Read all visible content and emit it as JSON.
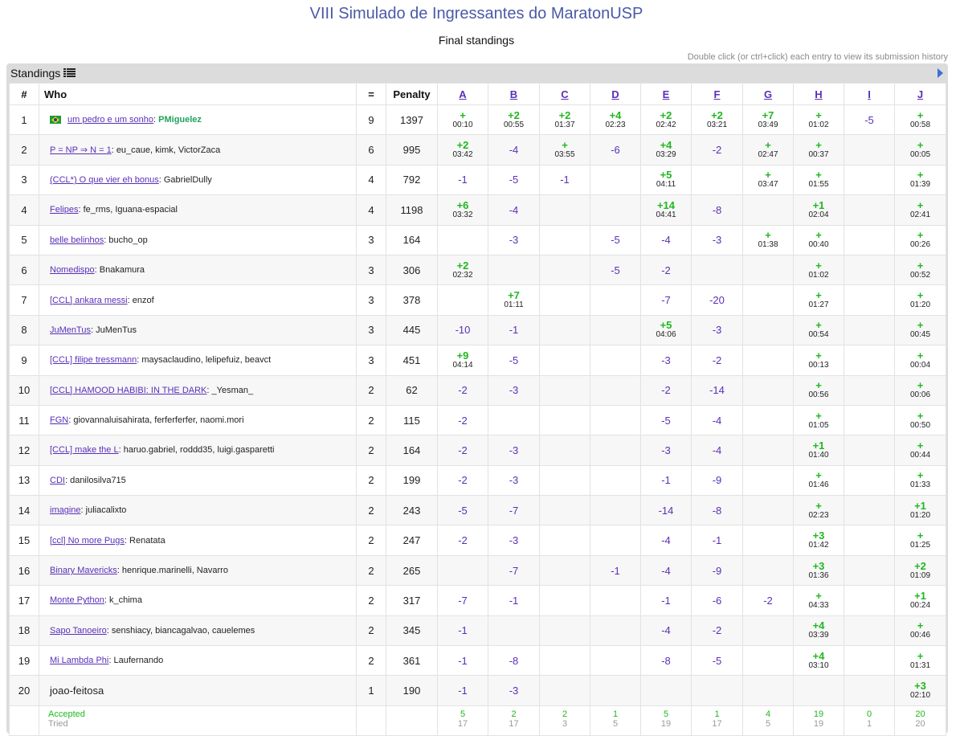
{
  "header": {
    "title": "VIII Simulado de Ingressantes do MaratonUSP",
    "subtitle": "Final standings",
    "hint": "Double click (or ctrl+click) each entry to view its submission history"
  },
  "panel": {
    "label": "Standings"
  },
  "columns": {
    "rank": "#",
    "who": "Who",
    "solved": "=",
    "penalty": "Penalty",
    "problems": [
      "A",
      "B",
      "C",
      "D",
      "E",
      "F",
      "G",
      "H",
      "I",
      "J"
    ]
  },
  "rows": [
    {
      "rank": "1",
      "flag": true,
      "team": "um pedro e um sonho",
      "members": "PMiguelez",
      "solved": "9",
      "penalty": "1397",
      "cells": [
        [
          "+",
          "00:10"
        ],
        [
          "+2",
          "00:55"
        ],
        [
          "+2",
          "01:37"
        ],
        [
          "+4",
          "02:23"
        ],
        [
          "+2",
          "02:42"
        ],
        [
          "+2",
          "03:21"
        ],
        [
          "+7",
          "03:49"
        ],
        [
          "+",
          "01:02"
        ],
        [
          "-5"
        ],
        [
          "+",
          "00:58"
        ]
      ]
    },
    {
      "rank": "2",
      "team": "P = NP ⇒ N = 1",
      "members": "eu_caue, kimk, VictorZaca",
      "solved": "6",
      "penalty": "995",
      "cells": [
        [
          "+2",
          "03:42"
        ],
        [
          "-4"
        ],
        [
          "+",
          "03:55"
        ],
        [
          "-6"
        ],
        [
          "+4",
          "03:29"
        ],
        [
          "-2"
        ],
        [
          "+",
          "02:47"
        ],
        [
          "+",
          "00:37"
        ],
        [],
        [
          "+",
          "00:05"
        ]
      ]
    },
    {
      "rank": "3",
      "team": "(CCL*) O que vier eh bonus",
      "members": "GabrielDully",
      "solved": "4",
      "penalty": "792",
      "cells": [
        [
          "-1"
        ],
        [
          "-5"
        ],
        [
          "-1"
        ],
        [],
        [
          "+5",
          "04:11"
        ],
        [],
        [
          "+",
          "03:47"
        ],
        [
          "+",
          "01:55"
        ],
        [],
        [
          "+",
          "01:39"
        ]
      ]
    },
    {
      "rank": "4",
      "team": "Felipes",
      "members": "fe_rms, Iguana-espacial",
      "solved": "4",
      "penalty": "1198",
      "cells": [
        [
          "+6",
          "03:32"
        ],
        [
          "-4"
        ],
        [],
        [],
        [
          "+14",
          "04:41"
        ],
        [
          "-8"
        ],
        [],
        [
          "+1",
          "02:04"
        ],
        [],
        [
          "+",
          "02:41"
        ]
      ]
    },
    {
      "rank": "5",
      "team": "belle belinhos",
      "members": "bucho_op",
      "solved": "3",
      "penalty": "164",
      "cells": [
        [],
        [
          "-3"
        ],
        [],
        [
          "-5"
        ],
        [
          "-4"
        ],
        [
          "-3"
        ],
        [
          "+",
          "01:38"
        ],
        [
          "+",
          "00:40"
        ],
        [],
        [
          "+",
          "00:26"
        ]
      ]
    },
    {
      "rank": "6",
      "team": "Nomedispo",
      "members": "Bnakamura",
      "solved": "3",
      "penalty": "306",
      "cells": [
        [
          "+2",
          "02:32"
        ],
        [],
        [],
        [
          "-5"
        ],
        [
          "-2"
        ],
        [],
        [],
        [
          "+",
          "01:02"
        ],
        [],
        [
          "+",
          "00:52"
        ]
      ]
    },
    {
      "rank": "7",
      "team": "[CCL] ankara messi",
      "members": "enzof",
      "solved": "3",
      "penalty": "378",
      "cells": [
        [],
        [
          "+7",
          "01:11"
        ],
        [],
        [],
        [
          "-7"
        ],
        [
          "-20"
        ],
        [],
        [
          "+",
          "01:27"
        ],
        [],
        [
          "+",
          "01:20"
        ]
      ]
    },
    {
      "rank": "8",
      "team": "JuMenTus",
      "members": "JuMenTus",
      "solved": "3",
      "penalty": "445",
      "cells": [
        [
          "-10"
        ],
        [
          "-1"
        ],
        [],
        [],
        [
          "+5",
          "04:06"
        ],
        [
          "-3"
        ],
        [],
        [
          "+",
          "00:54"
        ],
        [],
        [
          "+",
          "00:45"
        ]
      ]
    },
    {
      "rank": "9",
      "team": "[CCL] filipe tressmann",
      "members": "maysaclaudino, lelipefuiz, beavct",
      "solved": "3",
      "penalty": "451",
      "cells": [
        [
          "+9",
          "04:14"
        ],
        [
          "-5"
        ],
        [],
        [],
        [
          "-3"
        ],
        [
          "-2"
        ],
        [],
        [
          "+",
          "00:13"
        ],
        [],
        [
          "+",
          "00:04"
        ]
      ]
    },
    {
      "rank": "10",
      "team": "[CCL] HAMOOD HABIBI: IN THE DARK",
      "members": "_Yesman_",
      "solved": "2",
      "penalty": "62",
      "cells": [
        [
          "-2"
        ],
        [
          "-3"
        ],
        [],
        [],
        [
          "-2"
        ],
        [
          "-14"
        ],
        [],
        [
          "+",
          "00:56"
        ],
        [],
        [
          "+",
          "00:06"
        ]
      ]
    },
    {
      "rank": "11",
      "team": "FGN",
      "members": "giovannaluisahirata, ferferferfer, naomi.mori",
      "solved": "2",
      "penalty": "115",
      "cells": [
        [
          "-2"
        ],
        [],
        [],
        [],
        [
          "-5"
        ],
        [
          "-4"
        ],
        [],
        [
          "+",
          "01:05"
        ],
        [],
        [
          "+",
          "00:50"
        ]
      ]
    },
    {
      "rank": "12",
      "team": "[CCL] make the L",
      "members": "haruo.gabriel, roddd35, luigi.gasparetti",
      "solved": "2",
      "penalty": "164",
      "cells": [
        [
          "-2"
        ],
        [
          "-3"
        ],
        [],
        [],
        [
          "-3"
        ],
        [
          "-4"
        ],
        [],
        [
          "+1",
          "01:40"
        ],
        [],
        [
          "+",
          "00:44"
        ]
      ]
    },
    {
      "rank": "13",
      "team": "CDI",
      "members": "danilosilva715",
      "solved": "2",
      "penalty": "199",
      "cells": [
        [
          "-2"
        ],
        [
          "-3"
        ],
        [],
        [],
        [
          "-1"
        ],
        [
          "-9"
        ],
        [],
        [
          "+",
          "01:46"
        ],
        [],
        [
          "+",
          "01:33"
        ]
      ]
    },
    {
      "rank": "14",
      "team": "imagine",
      "members": "juliacalixto",
      "solved": "2",
      "penalty": "243",
      "cells": [
        [
          "-5"
        ],
        [
          "-7"
        ],
        [],
        [],
        [
          "-14"
        ],
        [
          "-8"
        ],
        [],
        [
          "+",
          "02:23"
        ],
        [],
        [
          "+1",
          "01:20"
        ]
      ]
    },
    {
      "rank": "15",
      "team": "[ccl] No more Pugs",
      "members": "Renatata",
      "solved": "2",
      "penalty": "247",
      "cells": [
        [
          "-2"
        ],
        [
          "-3"
        ],
        [],
        [],
        [
          "-4"
        ],
        [
          "-1"
        ],
        [],
        [
          "+3",
          "01:42"
        ],
        [],
        [
          "+",
          "01:25"
        ]
      ]
    },
    {
      "rank": "16",
      "team": "Binary Mavericks",
      "members": "henrique.marinelli, Navarro",
      "solved": "2",
      "penalty": "265",
      "cells": [
        [],
        [
          "-7"
        ],
        [],
        [
          "-1"
        ],
        [
          "-4"
        ],
        [
          "-9"
        ],
        [],
        [
          "+3",
          "01:36"
        ],
        [],
        [
          "+2",
          "01:09"
        ]
      ]
    },
    {
      "rank": "17",
      "team": "Monte Python",
      "members": "k_chima",
      "solved": "2",
      "penalty": "317",
      "cells": [
        [
          "-7"
        ],
        [
          "-1"
        ],
        [],
        [],
        [
          "-1"
        ],
        [
          "-6"
        ],
        [
          "-2"
        ],
        [
          "+",
          "04:33"
        ],
        [],
        [
          "+1",
          "00:24"
        ]
      ]
    },
    {
      "rank": "18",
      "team": "Sapo Tanoeiro",
      "members": "senshiacy, biancagalvao, cauelemes",
      "solved": "2",
      "penalty": "345",
      "cells": [
        [
          "-1"
        ],
        [],
        [],
        [],
        [
          "-4"
        ],
        [
          "-2"
        ],
        [],
        [
          "+4",
          "03:39"
        ],
        [],
        [
          "+",
          "00:46"
        ]
      ]
    },
    {
      "rank": "19",
      "team": "Mi Lambda Phi",
      "members": "Laufernando",
      "solved": "2",
      "penalty": "361",
      "cells": [
        [
          "-1"
        ],
        [
          "-8"
        ],
        [],
        [],
        [
          "-8"
        ],
        [
          "-5"
        ],
        [],
        [
          "+4",
          "03:10"
        ],
        [],
        [
          "+",
          "01:31"
        ]
      ]
    },
    {
      "rank": "20",
      "plain": "joao-feitosa",
      "solved": "1",
      "penalty": "190",
      "cells": [
        [
          "-1"
        ],
        [
          "-3"
        ],
        [],
        [],
        [],
        [],
        [],
        [],
        [],
        [
          "+3",
          "02:10"
        ]
      ]
    }
  ],
  "footer": {
    "accepted_label": "Accepted",
    "tried_label": "Tried",
    "accepted": [
      "5",
      "2",
      "2",
      "1",
      "5",
      "1",
      "4",
      "19",
      "0",
      "20"
    ],
    "tried": [
      "17",
      "17",
      "3",
      "5",
      "19",
      "17",
      "5",
      "19",
      "1",
      "20"
    ]
  },
  "colors": {
    "title": "#4a5aa6",
    "accepted": "#1fb81f",
    "failed": "#5a2fb8",
    "link": "#5a2fb8",
    "panel": "#dcdcdc"
  }
}
